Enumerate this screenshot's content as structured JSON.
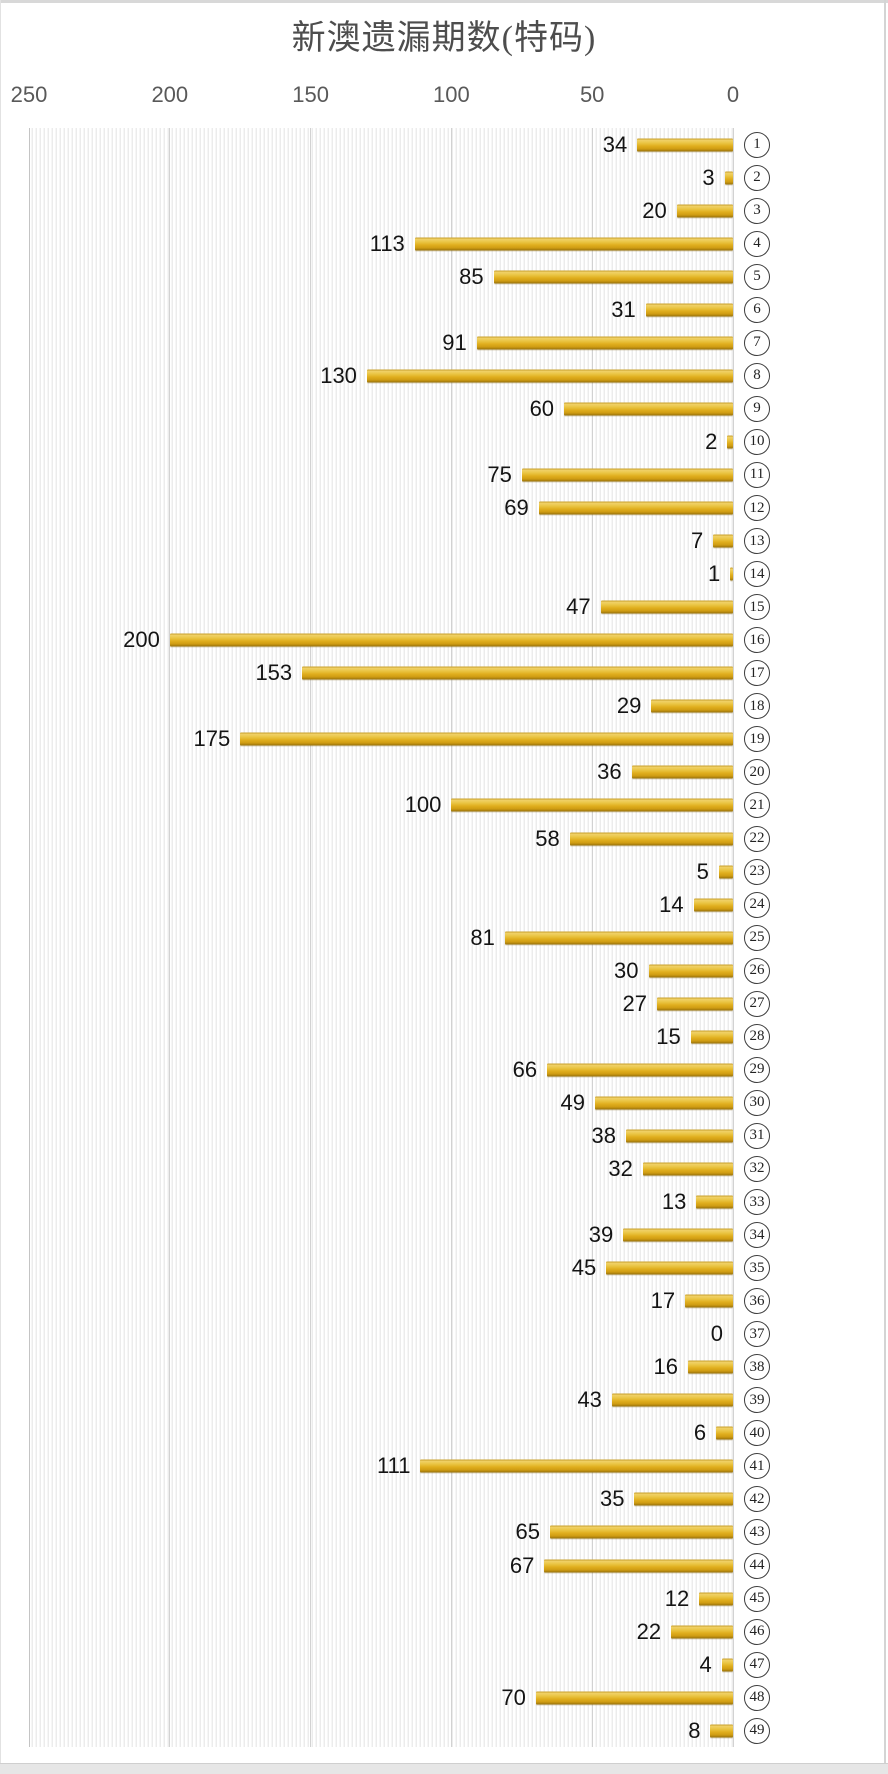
{
  "title": "新澳遗漏期数(特码)",
  "colors": {
    "bar_gold": "#e0b12b",
    "bar_highlight": "#f0d167",
    "bar_shadow": "#96700a",
    "gridline": "#d2d2d2",
    "plot_stripe": "#ececec",
    "axis_text": "#595959",
    "title_text": "#4d4d4d",
    "value_text": "#141414"
  },
  "chart_data": {
    "type": "bar",
    "orientation": "horizontal",
    "title": "新澳遗漏期数(特码)",
    "xlabel": "",
    "ylabel": "",
    "xlim": [
      0,
      250
    ],
    "x_ticks": [
      250,
      200,
      150,
      100,
      50,
      0
    ],
    "axis_reversed": true,
    "value_axis_position": "top",
    "grid": true,
    "legend": false,
    "categories": [
      "1",
      "2",
      "3",
      "4",
      "5",
      "6",
      "7",
      "8",
      "9",
      "10",
      "11",
      "12",
      "13",
      "14",
      "15",
      "16",
      "17",
      "18",
      "19",
      "20",
      "21",
      "22",
      "23",
      "24",
      "25",
      "26",
      "27",
      "28",
      "29",
      "30",
      "31",
      "32",
      "33",
      "34",
      "35",
      "36",
      "37",
      "38",
      "39",
      "40",
      "41",
      "42",
      "43",
      "44",
      "45",
      "46",
      "47",
      "48",
      "49"
    ],
    "category_style": "circled-number",
    "values": [
      34,
      3,
      20,
      113,
      85,
      31,
      91,
      130,
      60,
      2,
      75,
      69,
      7,
      1,
      47,
      200,
      153,
      29,
      175,
      36,
      100,
      58,
      5,
      14,
      81,
      30,
      27,
      15,
      66,
      49,
      38,
      32,
      13,
      39,
      45,
      17,
      0,
      16,
      43,
      6,
      111,
      35,
      65,
      67,
      12,
      22,
      4,
      70,
      8
    ]
  }
}
